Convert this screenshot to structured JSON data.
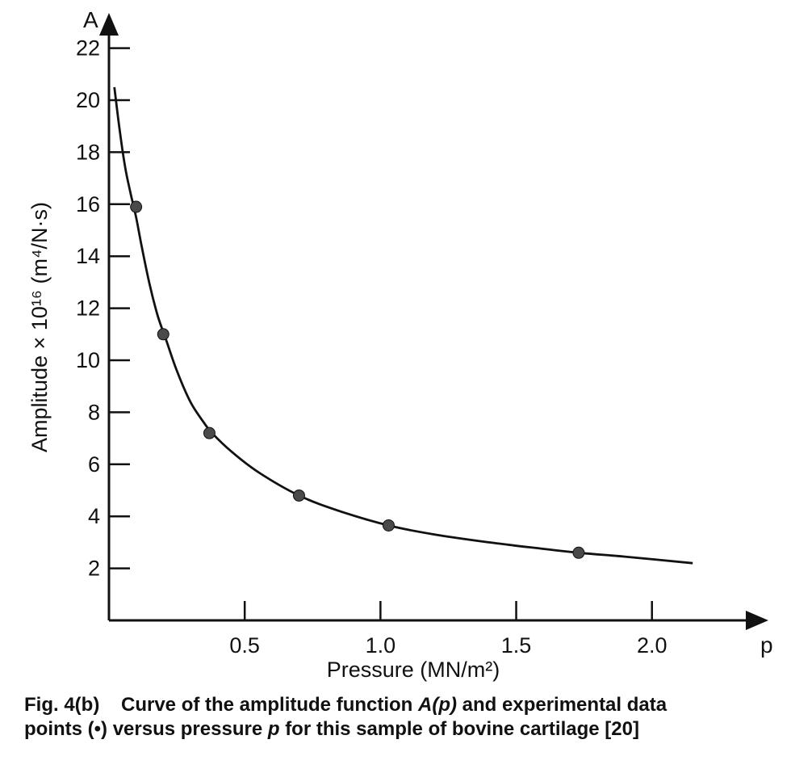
{
  "chart_data": {
    "type": "line",
    "xlabel": "Pressure (MN/m²)",
    "ylabel": "Amplitude × 10¹⁶ (m⁴/N·s)",
    "x_axis_letter": "p",
    "y_axis_letter": "A",
    "xlim": [
      0,
      2.2
    ],
    "ylim": [
      0,
      23
    ],
    "x_ticks": [
      0.5,
      1.0,
      1.5,
      2.0
    ],
    "x_tick_labels": [
      "0.5",
      "1.0",
      "1.5",
      "2.0"
    ],
    "y_ticks": [
      2,
      4,
      6,
      8,
      10,
      12,
      14,
      16,
      18,
      20,
      22
    ],
    "y_tick_labels": [
      "2",
      "4",
      "6",
      "8",
      "10",
      "12",
      "14",
      "16",
      "18",
      "20",
      "22"
    ],
    "grid": false,
    "series": [
      {
        "kind": "curve",
        "x": [
          0.02,
          0.04,
          0.06,
          0.08,
          0.1,
          0.12,
          0.15,
          0.18,
          0.21,
          0.25,
          0.3,
          0.35,
          0.38,
          0.45,
          0.55,
          0.7,
          0.85,
          1.03,
          1.2,
          1.4,
          1.6,
          1.73,
          1.9,
          2.15
        ],
        "y": [
          20.5,
          18.8,
          17.4,
          16.4,
          15.5,
          14.4,
          12.9,
          11.7,
          10.8,
          9.6,
          8.4,
          7.6,
          7.2,
          6.5,
          5.7,
          4.8,
          4.2,
          3.65,
          3.3,
          3.0,
          2.75,
          2.6,
          2.45,
          2.2
        ]
      },
      {
        "kind": "experimental points",
        "x": [
          0.1,
          0.2,
          0.37,
          0.7,
          1.03,
          1.73
        ],
        "y": [
          15.9,
          11.0,
          7.2,
          4.8,
          3.65,
          2.6
        ]
      }
    ]
  },
  "caption": {
    "fig_label": "Fig. 4(b)",
    "text_before_italic": "Curve of the amplitude function",
    "italic_function": "A(p)",
    "text_line1_end": "and experimental data",
    "text_line2_start": "points (•) versus pressure",
    "italic_p": "p",
    "text_line2_end": "for this sample of bovine cartilage [20]"
  },
  "colors": {
    "ink": "#111111",
    "marker": "#4a4a4a",
    "background": "#ffffff"
  }
}
